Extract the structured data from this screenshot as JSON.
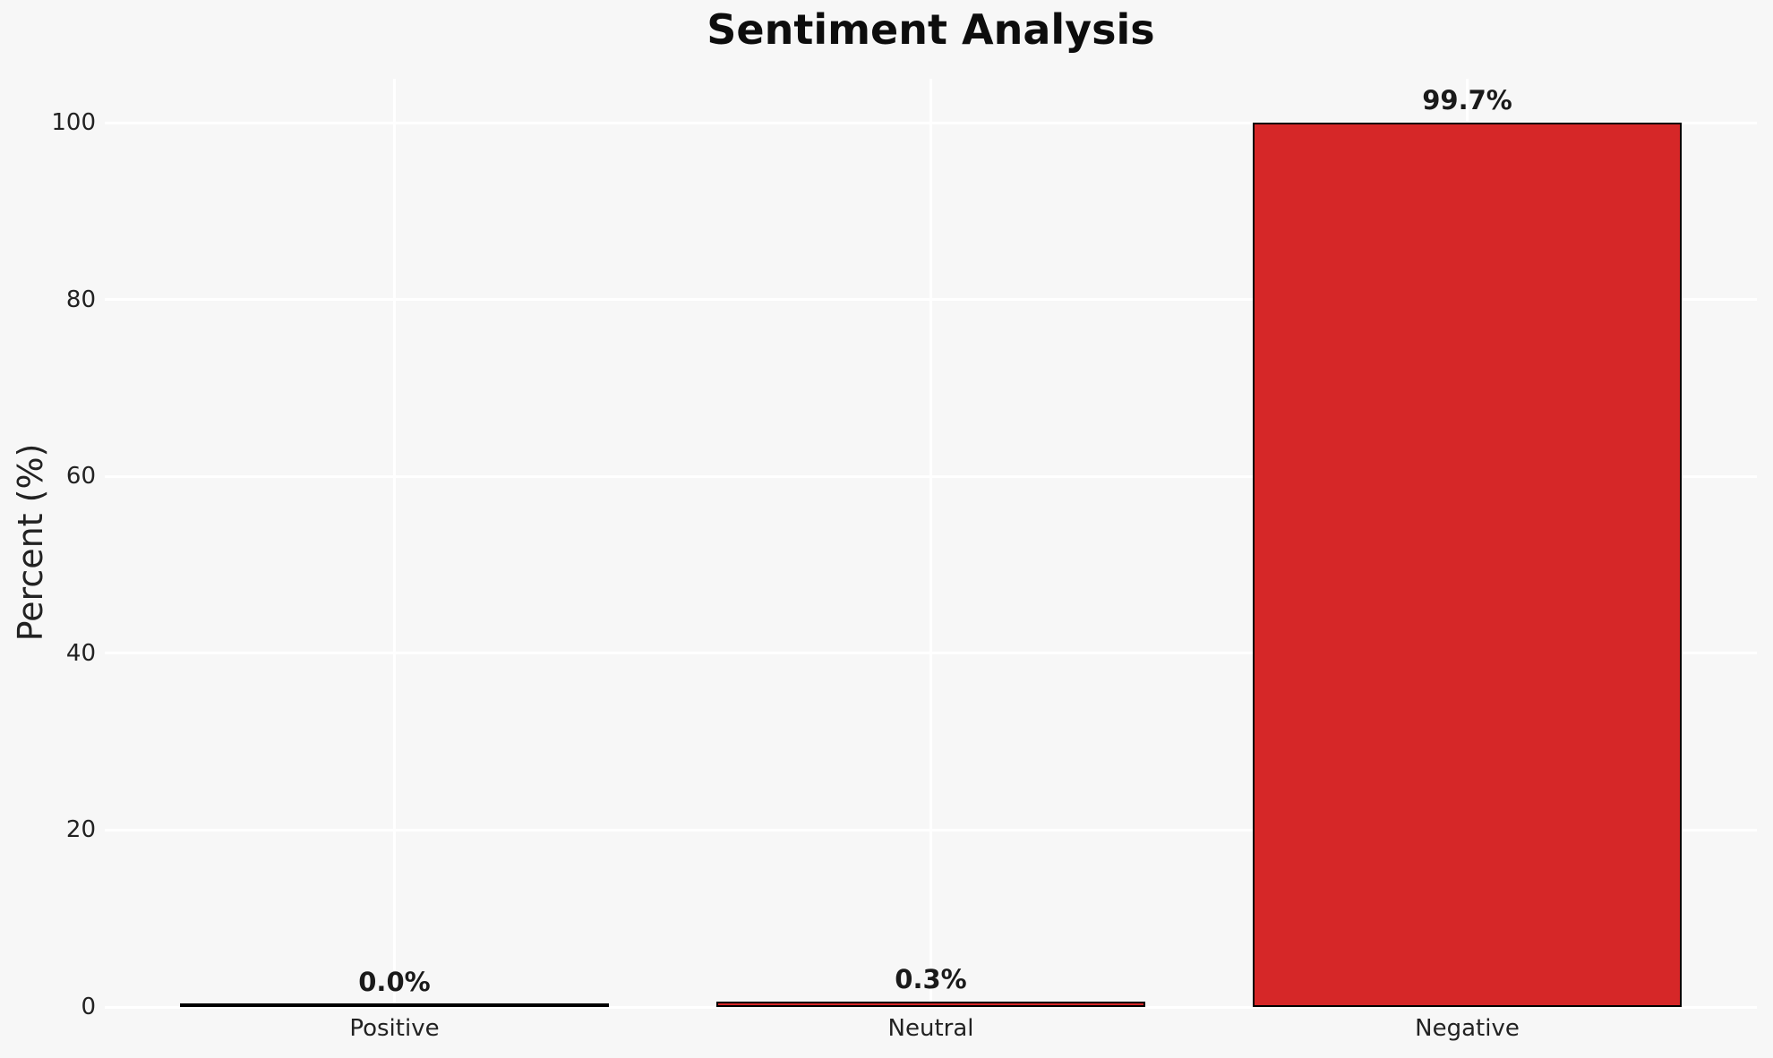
{
  "chart_data": {
    "type": "bar",
    "title": "Sentiment Analysis",
    "xlabel": "",
    "ylabel": "Percent (%)",
    "categories": [
      "Positive",
      "Neutral",
      "Negative"
    ],
    "values": [
      0.0,
      0.3,
      99.7
    ],
    "value_labels": [
      "0.0%",
      "0.3%",
      "99.7%"
    ],
    "yticks": [
      0,
      20,
      40,
      60,
      80,
      100
    ],
    "ylim": [
      0,
      105
    ],
    "grid": true,
    "legend_position": "none",
    "colors": {
      "background": "#f7f7f7",
      "gridline": "#ffffff",
      "bar_fill": "#d62728",
      "bar_edge": "#000000",
      "text": "#222222",
      "title_text": "#0d0d0d"
    }
  }
}
